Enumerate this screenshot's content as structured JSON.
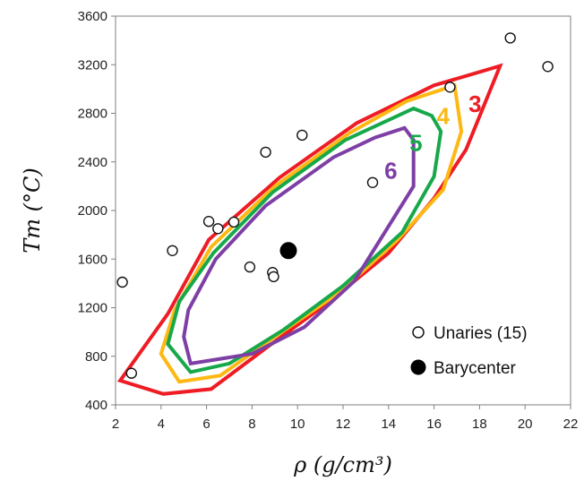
{
  "chart_data": {
    "type": "scatter",
    "xlabel": "ρ (g/cm³)",
    "ylabel": "Tm (°C)",
    "xlim": [
      2,
      22
    ],
    "ylim": [
      400,
      3600
    ],
    "x_ticks": [
      "2",
      "4",
      "6",
      "8",
      "10",
      "12",
      "14",
      "16",
      "18",
      "20",
      "22"
    ],
    "y_ticks": [
      "400",
      "800",
      "1200",
      "1600",
      "2000",
      "2400",
      "2800",
      "3200",
      "3600"
    ],
    "grid": false,
    "legend_position": "bottom-right",
    "series": [
      {
        "name": "Unaries (15)",
        "marker": "open-circle",
        "points": [
          {
            "x": 2.3,
            "y": 1410
          },
          {
            "x": 2.7,
            "y": 660
          },
          {
            "x": 4.5,
            "y": 1670
          },
          {
            "x": 6.1,
            "y": 1910
          },
          {
            "x": 6.5,
            "y": 1850
          },
          {
            "x": 7.2,
            "y": 1905
          },
          {
            "x": 7.9,
            "y": 1535
          },
          {
            "x": 8.6,
            "y": 2480
          },
          {
            "x": 8.9,
            "y": 1490
          },
          {
            "x": 8.95,
            "y": 1455
          },
          {
            "x": 10.2,
            "y": 2620
          },
          {
            "x": 13.3,
            "y": 2230
          },
          {
            "x": 16.7,
            "y": 3015
          },
          {
            "x": 19.35,
            "y": 3420
          },
          {
            "x": 21.0,
            "y": 3185
          }
        ]
      },
      {
        "name": "Barycenter",
        "marker": "filled-circle",
        "points": [
          {
            "x": 9.6,
            "y": 1670
          }
        ]
      }
    ],
    "contours": [
      {
        "label": "3",
        "color": "#ee1c24",
        "points": [
          [
            2.2,
            600
          ],
          [
            4.1,
            490
          ],
          [
            6.2,
            530
          ],
          [
            8.7,
            880
          ],
          [
            11.4,
            1250
          ],
          [
            14.0,
            1650
          ],
          [
            16.0,
            2100
          ],
          [
            17.4,
            2500
          ],
          [
            18.9,
            3190
          ],
          [
            16.0,
            3030
          ],
          [
            12.6,
            2720
          ],
          [
            9.2,
            2270
          ],
          [
            6.1,
            1760
          ],
          [
            4.3,
            1150
          ],
          [
            2.2,
            600
          ]
        ]
      },
      {
        "label": "4",
        "color": "#fdb813",
        "points": [
          [
            4.0,
            820
          ],
          [
            4.8,
            590
          ],
          [
            6.6,
            640
          ],
          [
            9.0,
            960
          ],
          [
            11.8,
            1320
          ],
          [
            14.4,
            1760
          ],
          [
            16.4,
            2170
          ],
          [
            17.2,
            2650
          ],
          [
            16.9,
            3030
          ],
          [
            14.8,
            2900
          ],
          [
            12.3,
            2640
          ],
          [
            9.0,
            2200
          ],
          [
            6.2,
            1700
          ],
          [
            4.6,
            1180
          ],
          [
            4.0,
            820
          ]
        ]
      },
      {
        "label": "5",
        "color": "#17a84a",
        "points": [
          [
            4.3,
            900
          ],
          [
            5.3,
            670
          ],
          [
            7.0,
            740
          ],
          [
            9.4,
            1020
          ],
          [
            12.0,
            1380
          ],
          [
            14.6,
            1820
          ],
          [
            16.0,
            2280
          ],
          [
            16.3,
            2650
          ],
          [
            15.9,
            2780
          ],
          [
            15.1,
            2840
          ],
          [
            12.1,
            2580
          ],
          [
            8.9,
            2150
          ],
          [
            6.3,
            1650
          ],
          [
            4.8,
            1250
          ],
          [
            4.3,
            900
          ]
        ]
      },
      {
        "label": "6",
        "color": "#7e3fa5",
        "points": [
          [
            5.0,
            960
          ],
          [
            5.3,
            740
          ],
          [
            8.0,
            820
          ],
          [
            10.3,
            1040
          ],
          [
            12.5,
            1420
          ],
          [
            15.1,
            2200
          ],
          [
            15.1,
            2580
          ],
          [
            14.7,
            2680
          ],
          [
            13.4,
            2600
          ],
          [
            11.6,
            2440
          ],
          [
            8.6,
            2040
          ],
          [
            6.4,
            1600
          ],
          [
            5.2,
            1180
          ],
          [
            5.0,
            960
          ]
        ]
      }
    ]
  },
  "legend": {
    "items": [
      {
        "label": "Unaries (15)",
        "marker": "open-circle"
      },
      {
        "label": "Barycenter",
        "marker": "filled-circle"
      }
    ]
  }
}
